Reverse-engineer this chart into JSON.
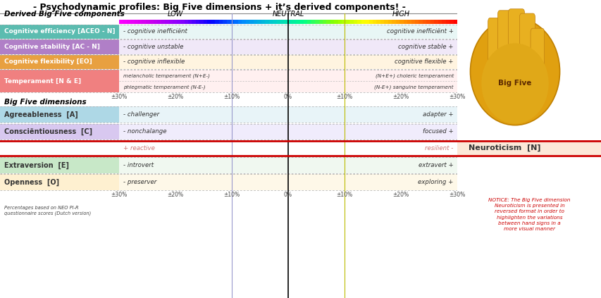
{
  "title": "- Psychodynamic profiles: Big Five dimensions + it’s derived components! -",
  "fig_width": 8.54,
  "fig_height": 4.23,
  "colors": {
    "teal": "#5bbcb0",
    "purple": "#b07fc7",
    "orange_row": "#e8a040",
    "pink": "#f08080",
    "light_blue": "#aed8e6",
    "light_purple": "#d8c8f0",
    "light_green": "#c8e8c8",
    "light_peach": "#fef0d0",
    "neuroticism_bg": "#fce8d8",
    "dark_red": "#cc0000",
    "white": "#ffffff",
    "black": "#000000"
  },
  "spectrum_colors": [
    "#ff00ff",
    "#cc00ee",
    "#8800ff",
    "#0000ff",
    "#0088ff",
    "#00cccc",
    "#00ff88",
    "#88ff00",
    "#ffff00",
    "#ffaa00",
    "#ff5500",
    "#ff0000"
  ],
  "axis_labels": [
    "±30%",
    "±20%",
    "±10%",
    "0%",
    "±10%",
    "±20%",
    "±30%"
  ],
  "rows": {
    "ce": {
      "label": "Cognitive efficiency [ACEO - N]",
      "color": "#5bbcb0",
      "bg": "#e8f6f5",
      "low": "- cognitive inefficiënt",
      "high": "cognitive inefficiënt +"
    },
    "cs": {
      "label": "Cognitive stability [AC - N]",
      "color": "#b07fc7",
      "bg": "#f0e8f8",
      "low": "- cognitive unstable",
      "high": "cognitive stable +"
    },
    "cf": {
      "label": "Cognitive flexibility [EO]",
      "color": "#e8a040",
      "bg": "#fff4e0",
      "low": "- cognitive inflexible",
      "high": "cognitive flexible +"
    },
    "temp": {
      "label": "Temperament [N & E]",
      "color": "#f08080",
      "bg": "#fff0f0"
    },
    "ag": {
      "label": "Agreeableness  [A]",
      "color": "#aed8e6",
      "bg": "#e8f4f8",
      "low": "- challenger",
      "high": "adapter +"
    },
    "co": {
      "label": "Consciëntiousness  [C]",
      "color": "#d8c8f0",
      "bg": "#f0ecfc",
      "low": "- nonchalange",
      "high": "focused +"
    },
    "ex": {
      "label": "Extraversion  [E]",
      "color": "#c8e8c8",
      "bg": "#f0f8f0",
      "low": "- introvert",
      "high": "extravert +"
    },
    "op": {
      "label": "Openness  [O]",
      "color": "#fef0d0",
      "bg": "#fef8e8",
      "low": "- preserver",
      "high": "exploring +"
    }
  },
  "temperament_lines": {
    "upper_left": "melancholic temperament (N+E-)",
    "upper_right": "(N+E+) choleric temperament",
    "lower_left": "phlegmatic temperament (N-E-)",
    "lower_right": "(N-E+) sanguine temperament"
  },
  "notice_text": "NOTICE: The Big Five dimension\nNeuroticism is presented in\nreversed format in order to\nhighlighten the variations\nbetween hand signs in a\nmore visual manner"
}
